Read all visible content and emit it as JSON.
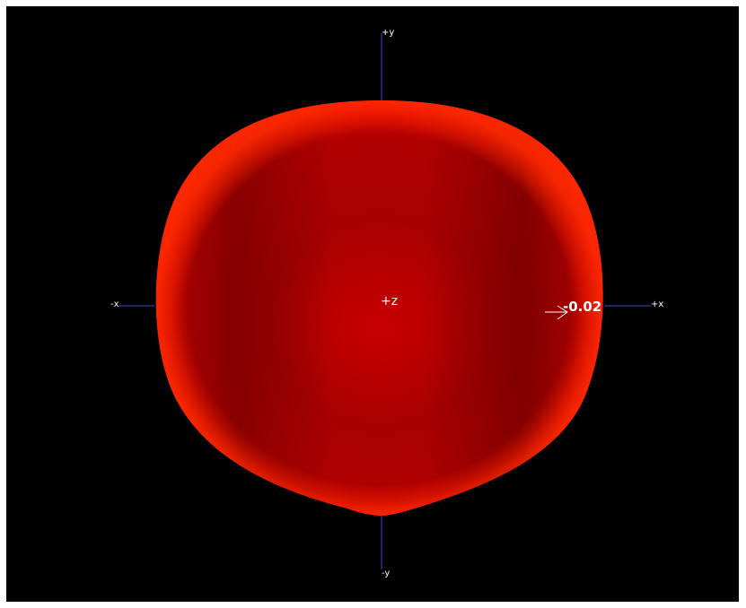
{
  "view": {
    "background_color": "#000000",
    "surface_color": "#e00000",
    "surface_highlight_color": "#ff1a00",
    "surface_shadow_color": "#8c0000",
    "axis_color": "#3b4bc8"
  },
  "axes": {
    "pos_y": "+y",
    "neg_y": "-y",
    "pos_x": "+x",
    "neg_x": "-x",
    "center": "+z"
  },
  "annotation": {
    "value": "-0.02",
    "arrow_icon": "arrow-right-icon"
  }
}
